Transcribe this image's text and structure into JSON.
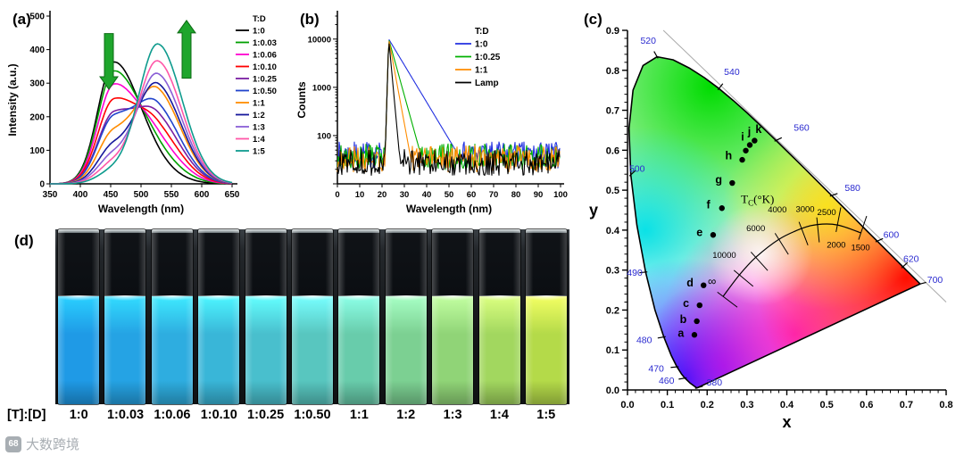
{
  "panels": {
    "a": "(a)",
    "b": "(b)",
    "c": "(c)",
    "d": "(d)"
  },
  "watermark": {
    "logo_text": "68",
    "text": "大数跨境"
  },
  "chart_data": [
    {
      "id": "a",
      "type": "line",
      "xlabel": "Wavelength (nm)",
      "ylabel": "Intensity (a.u.)",
      "xlim": [
        350,
        650
      ],
      "xticks": [
        350,
        400,
        450,
        500,
        550,
        600,
        650
      ],
      "ylim": [
        0,
        500
      ],
      "yticks": [
        0,
        100,
        200,
        300,
        400,
        500
      ],
      "legend_title": "T:D",
      "donor_peak_nm": 455,
      "acceptor_peak_nm": 528,
      "donor_sigma": [
        26,
        44
      ],
      "acceptor_sigma": [
        31,
        40
      ],
      "annotations": [
        {
          "type": "down-arrow",
          "x_nm": 447,
          "y_from": 448,
          "y_to": 282,
          "color": "#1ea52c"
        },
        {
          "type": "up-arrow",
          "x_nm": 575,
          "y_from": 315,
          "y_to": 487,
          "color": "#1ea52c"
        }
      ],
      "series": [
        {
          "name": "1:0",
          "color": "#000000",
          "donor_amp": 362,
          "acceptor_amp": 22
        },
        {
          "name": "1:0.03",
          "color": "#00a000",
          "donor_amp": 333,
          "acceptor_amp": 55
        },
        {
          "name": "1:0.06",
          "color": "#ff00d0",
          "donor_amp": 292,
          "acceptor_amp": 88
        },
        {
          "name": "1:0.10",
          "color": "#ff0000",
          "donor_amp": 246,
          "acceptor_amp": 126
        },
        {
          "name": "1:0.25",
          "color": "#7a1fa2",
          "donor_amp": 206,
          "acceptor_amp": 162
        },
        {
          "name": "1:0.50",
          "color": "#2244cc",
          "donor_amp": 194,
          "acceptor_amp": 194
        },
        {
          "name": "1:1",
          "color": "#ff8c00",
          "donor_amp": 150,
          "acceptor_amp": 248
        },
        {
          "name": "1:2",
          "color": "#16189c",
          "donor_amp": 110,
          "acceptor_amp": 272
        },
        {
          "name": "1:3",
          "color": "#8a5fd6",
          "donor_amp": 82,
          "acceptor_amp": 308
        },
        {
          "name": "1:4",
          "color": "#ff57a8",
          "donor_amp": 58,
          "acceptor_amp": 352
        },
        {
          "name": "1:5",
          "color": "#0f9b8e",
          "donor_amp": 36,
          "acceptor_amp": 408
        }
      ]
    },
    {
      "id": "b",
      "type": "line",
      "yscale": "log",
      "xlabel": "Wavelength (nm)",
      "ylabel": "Counts",
      "xlim": [
        0,
        100
      ],
      "xticks": [
        0,
        10,
        20,
        30,
        40,
        50,
        60,
        70,
        80,
        90,
        100
      ],
      "ylim": [
        10,
        30000
      ],
      "decades": [
        10,
        100,
        1000,
        10000
      ],
      "ytick_labels": [
        100,
        1000,
        10000
      ],
      "legend_title": "T:D",
      "peak_x": 23,
      "series": [
        {
          "name": "1:0",
          "color": "#2230e0",
          "baseline": 40,
          "peak": 10000,
          "decay": 13
        },
        {
          "name": "1:0.25",
          "color": "#00b000",
          "baseline": 36,
          "peak": 10000,
          "decay": 6
        },
        {
          "name": "1:1",
          "color": "#ff8c00",
          "baseline": 33,
          "peak": 10000,
          "decay": 4
        },
        {
          "name": "Lamp",
          "color": "#000000",
          "baseline": 28,
          "peak": 10000,
          "decay": 2
        }
      ]
    },
    {
      "id": "c",
      "type": "scatter",
      "xlabel": "x",
      "ylabel": "y",
      "xlim": [
        0,
        0.8
      ],
      "ylim": [
        0,
        0.9
      ],
      "xticks": [
        0.0,
        0.1,
        0.2,
        0.3,
        0.4,
        0.5,
        0.6,
        0.7,
        0.8
      ],
      "yticks": [
        0.0,
        0.1,
        0.2,
        0.3,
        0.4,
        0.5,
        0.6,
        0.7,
        0.8,
        0.9
      ],
      "diagonal_line": {
        "x1": 0.09,
        "y1": 0.9,
        "x2": 0.8,
        "y2": 0.22
      },
      "locus": [
        [
          0.1741,
          0.005
        ],
        [
          0.1689,
          0.0086
        ],
        [
          0.1566,
          0.0177
        ],
        [
          0.144,
          0.0297
        ],
        [
          0.1355,
          0.0399
        ],
        [
          0.1241,
          0.0578
        ],
        [
          0.1096,
          0.0868
        ],
        [
          0.0913,
          0.1327
        ],
        [
          0.0687,
          0.2007
        ],
        [
          0.0454,
          0.295
        ],
        [
          0.0235,
          0.4127
        ],
        [
          0.0082,
          0.5384
        ],
        [
          0.0039,
          0.6548
        ],
        [
          0.0139,
          0.7502
        ],
        [
          0.0389,
          0.812
        ],
        [
          0.0743,
          0.8338
        ],
        [
          0.1142,
          0.8262
        ],
        [
          0.1547,
          0.8059
        ],
        [
          0.1929,
          0.7816
        ],
        [
          0.2296,
          0.7543
        ],
        [
          0.2658,
          0.7243
        ],
        [
          0.3016,
          0.6923
        ],
        [
          0.3373,
          0.6589
        ],
        [
          0.3731,
          0.6245
        ],
        [
          0.4087,
          0.5896
        ],
        [
          0.4441,
          0.5547
        ],
        [
          0.4788,
          0.5202
        ],
        [
          0.5125,
          0.4866
        ],
        [
          0.5448,
          0.4544
        ],
        [
          0.5752,
          0.4242
        ],
        [
          0.6029,
          0.3965
        ],
        [
          0.627,
          0.3725
        ],
        [
          0.6482,
          0.3514
        ],
        [
          0.6658,
          0.334
        ],
        [
          0.6915,
          0.3083
        ],
        [
          0.7079,
          0.292
        ],
        [
          0.719,
          0.2809
        ],
        [
          0.7347,
          0.2653
        ]
      ],
      "fill_blobs": [
        {
          "color": "#00dc00",
          "x": 0.21,
          "y": 0.76,
          "r": 0.5,
          "o": 1
        },
        {
          "color": "#00e0e8",
          "x": 0.045,
          "y": 0.4,
          "r": 0.26,
          "o": 0.95
        },
        {
          "color": "#0020ff",
          "x": 0.15,
          "y": 0.03,
          "r": 0.3,
          "o": 1
        },
        {
          "color": "#8000ff",
          "x": 0.24,
          "y": 0.06,
          "r": 0.22,
          "o": 0.8
        },
        {
          "color": "#ff20c8",
          "x": 0.42,
          "y": 0.14,
          "r": 0.34,
          "o": 0.95
        },
        {
          "color": "#ff0f00",
          "x": 0.7,
          "y": 0.28,
          "r": 0.38,
          "o": 1
        },
        {
          "color": "#ffec00",
          "x": 0.5,
          "y": 0.46,
          "r": 0.26,
          "o": 0.8
        },
        {
          "color": "#ffffff",
          "x": 0.335,
          "y": 0.34,
          "r": 0.13,
          "o": 0.85
        }
      ],
      "wavelength_labels": [
        {
          "nm": "380",
          "x": 0.218,
          "y": 0.018,
          "lx": 0.1741,
          "ly": 0.005
        },
        {
          "nm": "460",
          "x": 0.098,
          "y": 0.022,
          "lx": 0.144,
          "ly": 0.0297
        },
        {
          "nm": "470",
          "x": 0.072,
          "y": 0.053,
          "lx": 0.1241,
          "ly": 0.0578
        },
        {
          "nm": "480",
          "x": 0.042,
          "y": 0.124,
          "lx": 0.0913,
          "ly": 0.1327
        },
        {
          "nm": "490",
          "x": 0.018,
          "y": 0.292,
          "lx": 0.0454,
          "ly": 0.295
        },
        {
          "nm": "500",
          "x": 0.024,
          "y": 0.553,
          "lx": 0.0082,
          "ly": 0.5384
        },
        {
          "nm": "520",
          "x": 0.052,
          "y": 0.873,
          "lx": 0.0743,
          "ly": 0.8338
        },
        {
          "nm": "540",
          "x": 0.262,
          "y": 0.795,
          "lx": 0.2296,
          "ly": 0.7543
        },
        {
          "nm": "560",
          "x": 0.437,
          "y": 0.655,
          "lx": 0.3731,
          "ly": 0.6245
        },
        {
          "nm": "580",
          "x": 0.565,
          "y": 0.505,
          "lx": 0.5125,
          "ly": 0.4866
        },
        {
          "nm": "600",
          "x": 0.662,
          "y": 0.388,
          "lx": 0.627,
          "ly": 0.3725
        },
        {
          "nm": "620",
          "x": 0.712,
          "y": 0.327,
          "lx": 0.6915,
          "ly": 0.3083
        },
        {
          "nm": "700",
          "x": 0.772,
          "y": 0.275,
          "lx": 0.7347,
          "ly": 0.2653
        }
      ],
      "points": [
        {
          "label": "a",
          "x": 0.168,
          "y": 0.138,
          "dx": -0.034,
          "dy": 0.004
        },
        {
          "label": "b",
          "x": 0.174,
          "y": 0.172,
          "dx": -0.034,
          "dy": 0.004
        },
        {
          "label": "c",
          "x": 0.181,
          "y": 0.212,
          "dx": -0.034,
          "dy": 0.005
        },
        {
          "label": "d",
          "x": 0.191,
          "y": 0.262,
          "dx": -0.034,
          "dy": 0.006
        },
        {
          "label": "e",
          "x": 0.215,
          "y": 0.388,
          "dx": -0.034,
          "dy": 0.006
        },
        {
          "label": "f",
          "x": 0.237,
          "y": 0.455,
          "dx": -0.034,
          "dy": 0.008
        },
        {
          "label": "g",
          "x": 0.263,
          "y": 0.518,
          "dx": -0.034,
          "dy": 0.008
        },
        {
          "label": "h",
          "x": 0.288,
          "y": 0.576,
          "dx": -0.034,
          "dy": 0.01
        },
        {
          "label": "i",
          "x": 0.297,
          "y": 0.599,
          "dx": -0.008,
          "dy": 0.034
        },
        {
          "label": "j",
          "x": 0.307,
          "y": 0.613,
          "dx": -0.001,
          "dy": 0.034
        },
        {
          "label": "k",
          "x": 0.319,
          "y": 0.624,
          "dx": 0.01,
          "dy": 0.028
        }
      ],
      "planckian": [
        [
          0.24,
          0.234
        ],
        [
          0.281,
          0.288
        ],
        [
          0.322,
          0.332
        ],
        [
          0.38,
          0.377
        ],
        [
          0.437,
          0.404
        ],
        [
          0.477,
          0.414
        ],
        [
          0.527,
          0.413
        ],
        [
          0.586,
          0.393
        ]
      ],
      "cct_labels": [
        {
          "text": "∞",
          "x": 0.212,
          "y": 0.262
        },
        {
          "text": "10000",
          "x": 0.243,
          "y": 0.33
        },
        {
          "text": "6000",
          "x": 0.322,
          "y": 0.398
        },
        {
          "text": "4000",
          "x": 0.376,
          "y": 0.444
        },
        {
          "text": "3000",
          "x": 0.446,
          "y": 0.446
        },
        {
          "text": "2500",
          "x": 0.5,
          "y": 0.438
        },
        {
          "text": "2000",
          "x": 0.524,
          "y": 0.356
        },
        {
          "text": "1500",
          "x": 0.585,
          "y": 0.35
        }
      ],
      "tc_label": {
        "t": "T",
        "sub": "C",
        "unit": "(°K)",
        "x": 0.285,
        "y": 0.468
      }
    }
  ],
  "panel_d": {
    "ratio_label": "[T]:[D]",
    "ratios": [
      "1:0",
      "1:0.03",
      "1:0.06",
      "1:0.10",
      "1:0.25",
      "1:0.50",
      "1:1",
      "1:2",
      "1:3",
      "1:4",
      "1:5"
    ],
    "liquid_colors": [
      "#1f9ae6",
      "#25a3e4",
      "#2eade0",
      "#39b6d8",
      "#49bfcd",
      "#58c6bf",
      "#68ccab",
      "#7cd092",
      "#90d477",
      "#a2d75f",
      "#b4da49"
    ]
  }
}
